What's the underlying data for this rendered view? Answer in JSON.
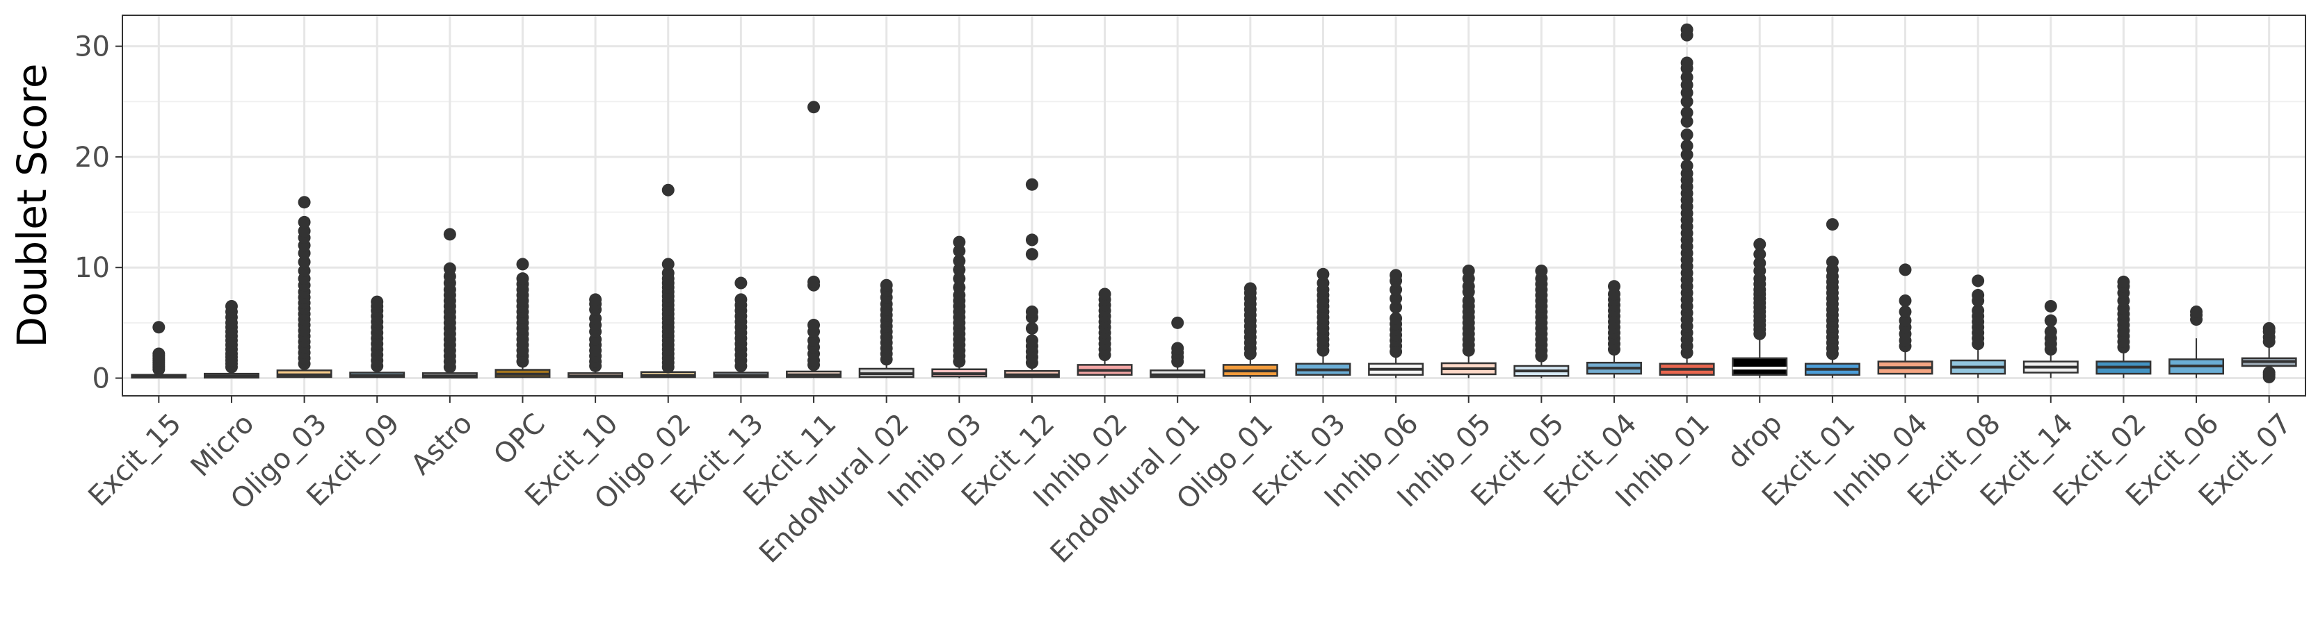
{
  "chart_data": {
    "type": "box",
    "ylabel": "Doublet Score",
    "xlabel": "",
    "ylim": [
      -1.6,
      32.8
    ],
    "yticks": [
      0,
      10,
      20,
      30
    ],
    "grid": true,
    "legend": "none",
    "categories": [
      "Excit_15",
      "Micro",
      "Oligo_03",
      "Excit_09",
      "Astro",
      "OPC",
      "Excit_10",
      "Oligo_02",
      "Excit_13",
      "Excit_11",
      "EndoMural_02",
      "Inhib_03",
      "Excit_12",
      "Inhib_02",
      "EndoMural_01",
      "Oligo_01",
      "Excit_03",
      "Inhib_06",
      "Inhib_05",
      "Excit_05",
      "Excit_04",
      "Inhib_01",
      "drop",
      "Excit_01",
      "Inhib_04",
      "Excit_08",
      "Excit_14",
      "Excit_02",
      "Excit_06",
      "Excit_07"
    ],
    "boxes": [
      {
        "category": "Excit_15",
        "q1": 0.05,
        "median": 0.15,
        "q3": 0.3,
        "whisker_low": 0.0,
        "whisker_high": 0.6,
        "fill": "#B9A3D6",
        "outliers": [
          0.8,
          1.0,
          1.2,
          1.4,
          1.6,
          1.8,
          2.0,
          2.2,
          4.6
        ]
      },
      {
        "category": "Micro",
        "q1": 0.05,
        "median": 0.2,
        "q3": 0.4,
        "whisker_low": 0.0,
        "whisker_high": 0.9,
        "fill": "#F5F5F5",
        "outliers": [
          1.0,
          1.3,
          1.6,
          1.9,
          2.2,
          2.6,
          3.0,
          3.4,
          3.8,
          4.2,
          4.6,
          5.0,
          5.5,
          6.0,
          6.5
        ]
      },
      {
        "category": "Oligo_03",
        "q1": 0.1,
        "median": 0.3,
        "q3": 0.7,
        "whisker_low": 0.0,
        "whisker_high": 1.1,
        "fill": "#F7CC8A",
        "outliers": [
          1.3,
          1.8,
          2.3,
          2.8,
          3.3,
          3.8,
          4.3,
          4.8,
          5.3,
          5.8,
          6.3,
          6.8,
          7.3,
          7.8,
          8.4,
          9.0,
          9.7,
          10.5,
          11.3,
          12.0,
          12.7,
          13.3,
          14.1,
          15.9
        ]
      },
      {
        "category": "Excit_09",
        "q1": 0.1,
        "median": 0.25,
        "q3": 0.5,
        "whisker_low": 0.0,
        "whisker_high": 0.9,
        "fill": "#9ECAE1",
        "outliers": [
          1.1,
          1.6,
          2.1,
          2.6,
          3.1,
          3.6,
          4.1,
          4.6,
          5.1,
          5.6,
          6.1,
          6.5,
          6.9
        ]
      },
      {
        "category": "Astro",
        "q1": 0.05,
        "median": 0.2,
        "q3": 0.45,
        "whisker_low": 0.0,
        "whisker_high": 0.9,
        "fill": "#BBBBBB",
        "outliers": [
          1.0,
          1.5,
          2.0,
          2.5,
          3.0,
          3.5,
          4.0,
          4.5,
          5.0,
          5.5,
          6.0,
          6.5,
          7.0,
          7.5,
          8.0,
          8.6,
          9.2,
          9.9,
          13.0
        ]
      },
      {
        "category": "OPC",
        "q1": 0.1,
        "median": 0.35,
        "q3": 0.75,
        "whisker_low": 0.0,
        "whisker_high": 1.3,
        "fill": "#A6761D",
        "outliers": [
          1.5,
          2.0,
          2.5,
          3.0,
          3.5,
          4.0,
          4.5,
          5.0,
          5.5,
          6.0,
          6.5,
          7.0,
          7.5,
          8.0,
          8.5,
          9.0,
          10.3
        ]
      },
      {
        "category": "Excit_10",
        "q1": 0.1,
        "median": 0.2,
        "q3": 0.45,
        "whisker_low": 0.0,
        "whisker_high": 0.9,
        "fill": "#FDDBC7",
        "outliers": [
          1.1,
          1.5,
          2.0,
          2.5,
          3.0,
          3.5,
          4.2,
          4.8,
          5.4,
          6.2,
          6.7,
          7.1
        ]
      },
      {
        "category": "Oligo_02",
        "q1": 0.1,
        "median": 0.25,
        "q3": 0.55,
        "whisker_low": 0.0,
        "whisker_high": 0.9,
        "fill": "#EFD59C",
        "outliers": [
          1.0,
          1.4,
          1.8,
          2.2,
          2.6,
          3.0,
          3.4,
          3.8,
          4.2,
          4.6,
          5.0,
          5.4,
          5.8,
          6.2,
          6.6,
          7.0,
          7.4,
          7.8,
          8.2,
          8.6,
          9.0,
          9.5,
          10.3,
          17.0
        ]
      },
      {
        "category": "Excit_13",
        "q1": 0.1,
        "median": 0.25,
        "q3": 0.5,
        "whisker_low": 0.0,
        "whisker_high": 0.9,
        "fill": "#D1E5F0",
        "outliers": [
          1.1,
          1.6,
          2.1,
          2.6,
          3.1,
          3.6,
          4.1,
          4.6,
          5.1,
          5.6,
          6.1,
          6.6,
          7.1,
          8.6
        ]
      },
      {
        "category": "Excit_11",
        "q1": 0.1,
        "median": 0.3,
        "q3": 0.6,
        "whisker_low": 0.0,
        "whisker_high": 1.0,
        "fill": "#FCE0D0",
        "outliers": [
          1.2,
          1.6,
          2.2,
          2.8,
          3.4,
          4.2,
          4.8,
          8.4,
          8.7,
          24.5
        ]
      },
      {
        "category": "EndoMural_02",
        "q1": 0.1,
        "median": 0.4,
        "q3": 0.85,
        "whisker_low": 0.0,
        "whisker_high": 1.5,
        "fill": "#D9D9D9",
        "outliers": [
          1.7,
          2.2,
          2.7,
          3.2,
          3.7,
          4.2,
          4.7,
          5.2,
          5.7,
          6.2,
          6.7,
          7.3,
          7.9,
          8.4
        ]
      },
      {
        "category": "Inhib_03",
        "q1": 0.15,
        "median": 0.4,
        "q3": 0.8,
        "whisker_low": 0.0,
        "whisker_high": 1.3,
        "fill": "#FBC4C4",
        "outliers": [
          1.5,
          2.0,
          2.5,
          3.0,
          3.5,
          4.0,
          4.5,
          5.0,
          5.5,
          6.0,
          6.5,
          7.0,
          7.5,
          8.2,
          9.0,
          9.8,
          10.6,
          11.5,
          12.3
        ]
      },
      {
        "category": "Excit_12",
        "q1": 0.1,
        "median": 0.3,
        "q3": 0.65,
        "whisker_low": 0.0,
        "whisker_high": 1.1,
        "fill": "#F7C6B6",
        "outliers": [
          1.4,
          1.9,
          2.4,
          2.9,
          3.4,
          4.5,
          5.5,
          6.0,
          11.2,
          12.5,
          17.5
        ]
      },
      {
        "category": "Inhib_02",
        "q1": 0.3,
        "median": 0.7,
        "q3": 1.2,
        "whisker_low": 0.0,
        "whisker_high": 1.9,
        "fill": "#F4A6A6",
        "outliers": [
          2.1,
          2.6,
          3.1,
          3.6,
          4.1,
          4.6,
          5.1,
          5.6,
          6.1,
          6.6,
          7.1,
          7.6
        ]
      },
      {
        "category": "EndoMural_01",
        "q1": 0.1,
        "median": 0.3,
        "q3": 0.7,
        "whisker_low": 0.0,
        "whisker_high": 1.2,
        "fill": "#E8E8E8",
        "outliers": [
          1.5,
          1.9,
          2.3,
          2.7,
          5.0
        ]
      },
      {
        "category": "Oligo_01",
        "q1": 0.2,
        "median": 0.65,
        "q3": 1.2,
        "whisker_low": 0.0,
        "whisker_high": 2.0,
        "fill": "#F39C3C",
        "outliers": [
          2.2,
          2.7,
          3.2,
          3.7,
          4.2,
          4.7,
          5.2,
          5.7,
          6.2,
          6.7,
          7.2,
          7.7,
          8.1
        ]
      },
      {
        "category": "Excit_03",
        "q1": 0.3,
        "median": 0.75,
        "q3": 1.3,
        "whisker_low": 0.0,
        "whisker_high": 2.2,
        "fill": "#6BAED6",
        "outliers": [
          2.5,
          3.0,
          3.5,
          4.0,
          4.5,
          5.0,
          5.5,
          6.0,
          6.5,
          7.0,
          7.5,
          8.0,
          8.6,
          9.4
        ]
      },
      {
        "category": "Inhib_06",
        "q1": 0.3,
        "median": 0.8,
        "q3": 1.3,
        "whisker_low": 0.0,
        "whisker_high": 2.1,
        "fill": "#F7F7F7",
        "outliers": [
          2.4,
          2.9,
          3.4,
          3.9,
          4.4,
          4.9,
          5.4,
          6.4,
          7.2,
          8.0,
          8.8,
          9.3
        ]
      },
      {
        "category": "Inhib_05",
        "q1": 0.35,
        "median": 0.85,
        "q3": 1.35,
        "whisker_low": 0.0,
        "whisker_high": 2.2,
        "fill": "#FDD9C8",
        "outliers": [
          2.5,
          3.0,
          3.5,
          4.0,
          4.5,
          5.0,
          5.5,
          6.0,
          6.5,
          7.0,
          7.8,
          8.3,
          9.0,
          9.7
        ]
      },
      {
        "category": "Excit_05",
        "q1": 0.2,
        "median": 0.65,
        "q3": 1.1,
        "whisker_low": 0.0,
        "whisker_high": 1.8,
        "fill": "#D6E9F5",
        "outliers": [
          2.0,
          2.5,
          3.0,
          3.5,
          4.0,
          4.5,
          5.0,
          5.5,
          6.0,
          6.5,
          7.0,
          7.5,
          8.0,
          8.5,
          9.0,
          9.7
        ]
      },
      {
        "category": "Excit_04",
        "q1": 0.4,
        "median": 0.9,
        "q3": 1.4,
        "whisker_low": 0.0,
        "whisker_high": 2.3,
        "fill": "#74ADD1",
        "outliers": [
          2.6,
          3.1,
          3.6,
          4.1,
          4.6,
          5.1,
          5.6,
          6.1,
          6.6,
          7.1,
          7.6,
          8.3
        ]
      },
      {
        "category": "Inhib_01",
        "q1": 0.3,
        "median": 0.8,
        "q3": 1.3,
        "whisker_low": 0.0,
        "whisker_high": 2.0,
        "fill": "#E9664F",
        "outliers": [
          2.3,
          2.9,
          3.5,
          4.1,
          4.7,
          5.3,
          5.9,
          6.5,
          7.1,
          7.7,
          8.3,
          8.9,
          9.5,
          10.1,
          10.7,
          11.3,
          11.9,
          12.5,
          13.1,
          13.7,
          14.3,
          14.9,
          15.5,
          16.1,
          16.7,
          17.3,
          17.9,
          18.5,
          19.2,
          20.2,
          21.0,
          22.0,
          23.2,
          24.0,
          25.0,
          25.8,
          26.5,
          27.2,
          28.0,
          28.5,
          31.0,
          31.5
        ]
      },
      {
        "category": "drop",
        "q1": 0.3,
        "median": 0.9,
        "q3": 1.8,
        "whisker_low": 0.0,
        "whisker_high": 3.8,
        "fill": "#000000",
        "outliers": [
          4.0,
          4.4,
          4.8,
          5.2,
          5.6,
          6.0,
          6.4,
          6.8,
          7.2,
          7.6,
          8.0,
          8.5,
          9.0,
          9.7,
          10.4,
          11.2,
          12.1
        ]
      },
      {
        "category": "Excit_01",
        "q1": 0.3,
        "median": 0.8,
        "q3": 1.3,
        "whisker_low": 0.0,
        "whisker_high": 2.0,
        "fill": "#4C9ED9",
        "outliers": [
          2.2,
          2.7,
          3.2,
          3.7,
          4.2,
          4.7,
          5.2,
          5.7,
          6.2,
          6.7,
          7.2,
          7.7,
          8.2,
          8.7,
          9.2,
          9.8,
          10.5,
          13.9
        ]
      },
      {
        "category": "Inhib_04",
        "q1": 0.4,
        "median": 0.95,
        "q3": 1.5,
        "whisker_low": 0.0,
        "whisker_high": 2.6,
        "fill": "#F4A582",
        "outliers": [
          2.9,
          3.4,
          4.0,
          4.6,
          5.2,
          6.0,
          7.0,
          9.8
        ]
      },
      {
        "category": "Excit_08",
        "q1": 0.4,
        "median": 1.0,
        "q3": 1.6,
        "whisker_low": 0.0,
        "whisker_high": 2.8,
        "fill": "#92C5DE",
        "outliers": [
          3.1,
          3.6,
          4.1,
          4.6,
          5.1,
          5.6,
          6.1,
          7.0,
          7.5,
          8.8
        ]
      },
      {
        "category": "Excit_14",
        "q1": 0.5,
        "median": 1.0,
        "q3": 1.5,
        "whisker_low": 0.0,
        "whisker_high": 2.3,
        "fill": "#F0F0F0",
        "outliers": [
          2.6,
          3.1,
          3.6,
          4.2,
          5.2,
          6.5
        ]
      },
      {
        "category": "Excit_02",
        "q1": 0.4,
        "median": 1.0,
        "q3": 1.5,
        "whisker_low": 0.0,
        "whisker_high": 2.5,
        "fill": "#4393C3",
        "outliers": [
          2.8,
          3.3,
          3.8,
          4.3,
          4.8,
          5.3,
          5.8,
          6.3,
          7.0,
          7.7,
          8.3,
          8.7
        ]
      },
      {
        "category": "Excit_06",
        "q1": 0.4,
        "median": 1.1,
        "q3": 1.7,
        "whisker_low": 0.0,
        "whisker_high": 3.6,
        "fill": "#6BAED6",
        "outliers": [
          5.3,
          5.7,
          6.0
        ]
      },
      {
        "category": "Excit_07",
        "q1": 1.1,
        "median": 1.5,
        "q3": 1.8,
        "whisker_low": 0.0,
        "whisker_high": 2.9,
        "fill": "#9BA9B4",
        "outliers": [
          0.1,
          0.3,
          0.5,
          3.3,
          3.7,
          4.2,
          4.5
        ]
      }
    ]
  }
}
